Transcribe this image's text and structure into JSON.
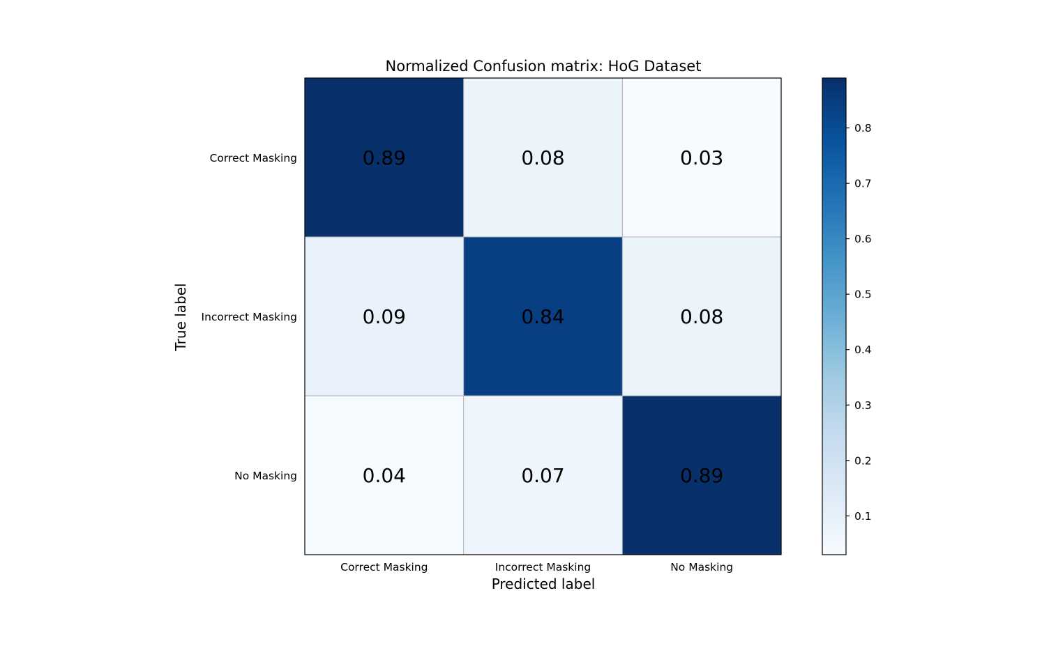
{
  "chart_data": {
    "type": "heatmap",
    "title": "Normalized Confusion matrix: HoG Dataset",
    "xlabel": "Predicted label",
    "ylabel": "True label",
    "x_categories": [
      "Correct Masking",
      "Incorrect Masking",
      "No Masking"
    ],
    "y_categories": [
      "Correct Masking",
      "Incorrect Masking",
      "No Masking"
    ],
    "values": [
      [
        0.89,
        0.08,
        0.03
      ],
      [
        0.09,
        0.84,
        0.08
      ],
      [
        0.04,
        0.07,
        0.89
      ]
    ],
    "cell_labels": [
      [
        "0.89",
        "0.08",
        "0.03"
      ],
      [
        "0.09",
        "0.84",
        "0.08"
      ],
      [
        "0.04",
        "0.07",
        "0.89"
      ]
    ],
    "colormap": "Blues",
    "colorbar": {
      "range": [
        0.03,
        0.89
      ],
      "ticks": [
        0.1,
        0.2,
        0.3,
        0.4,
        0.5,
        0.6,
        0.7,
        0.8
      ],
      "tick_labels": [
        "0.1",
        "0.2",
        "0.3",
        "0.4",
        "0.5",
        "0.6",
        "0.7",
        "0.8"
      ]
    },
    "grid": true,
    "grid_color": "#b0b0b0",
    "colors": {
      "colormap_stops": [
        "#f7fbff",
        "#deebf7",
        "#c6dbef",
        "#9ecae1",
        "#6baed6",
        "#4292c6",
        "#2171b5",
        "#08519c",
        "#08306b"
      ]
    }
  }
}
